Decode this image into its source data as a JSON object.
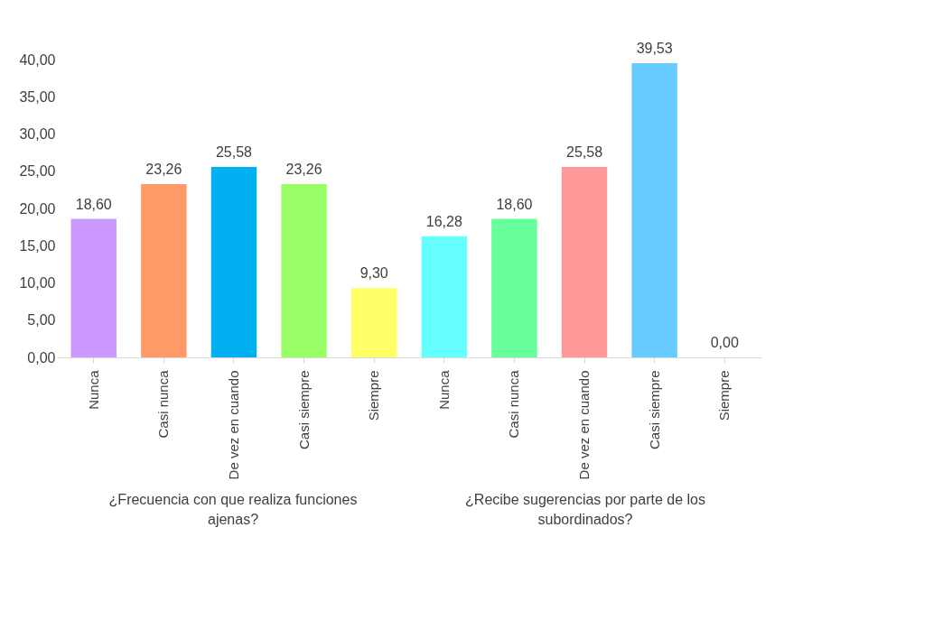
{
  "chart_data": {
    "type": "bar",
    "categories": [
      "Nunca",
      "Casi nunca",
      "De vez en cuando",
      "Casi siempre",
      "Siempre",
      "Nunca",
      "Casi nunca",
      "De vez en cuando",
      "Casi siempre",
      "Siempre"
    ],
    "values": [
      18.6,
      23.26,
      25.58,
      23.26,
      9.3,
      16.28,
      18.6,
      25.58,
      39.53,
      0.0
    ],
    "colors": [
      "#cc99ff",
      "#ff9966",
      "#00b0f0",
      "#99ff66",
      "#ffff66",
      "#66ffff",
      "#66ff99",
      "#ff9999",
      "#66ccff",
      "#003366"
    ],
    "value_labels": [
      "18,60",
      "23,26",
      "25,58",
      "23,26",
      "9,30",
      "16,28",
      "18,60",
      "25,58",
      "39,53",
      "0,00"
    ],
    "ylim": [
      0,
      40
    ],
    "yticks": [
      {
        "value": 0,
        "label": "0,00"
      },
      {
        "value": 5,
        "label": "5,00"
      },
      {
        "value": 10,
        "label": "10,00"
      },
      {
        "value": 15,
        "label": "15,00"
      },
      {
        "value": 20,
        "label": "20,00"
      },
      {
        "value": 25,
        "label": "25,00"
      },
      {
        "value": 30,
        "label": "30,00"
      },
      {
        "value": 35,
        "label": "35,00"
      },
      {
        "value": 40,
        "label": "40,00"
      }
    ],
    "annotations": [
      "¿Frecuencia con que realiza funciones ajenas?",
      "¿Recibe sugerencias por parte de los subordinados?"
    ],
    "grid": false,
    "legend": false
  }
}
